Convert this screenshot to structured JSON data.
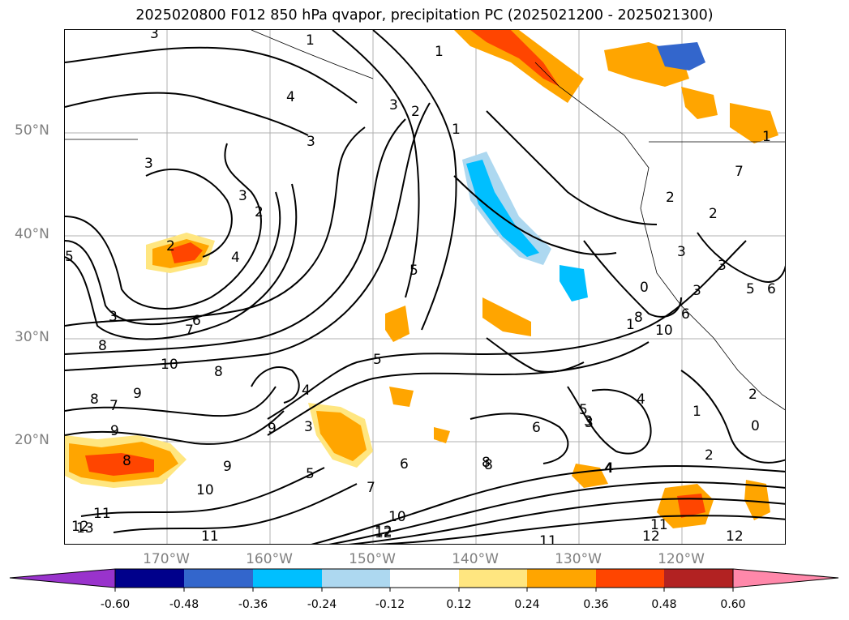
{
  "title": "2025020800 F012 850 hPa qvapor, precipitation PC (2025021200 - 2025021300)",
  "map": {
    "lat_labels": [
      "50°N",
      "40°N",
      "30°N",
      "20°N"
    ],
    "lon_labels": [
      "170°W",
      "160°W",
      "150°W",
      "140°W",
      "130°W",
      "120°W"
    ],
    "contour_labels": [
      "3",
      "1",
      "1",
      "4",
      "3",
      "2",
      "3",
      "1",
      "3",
      "3",
      "2",
      "2",
      "4",
      "5",
      "5",
      "6",
      "7",
      "8",
      "3",
      "8",
      "9",
      "8",
      "7",
      "9",
      "10",
      "8",
      "9",
      "10",
      "11",
      "12",
      "13",
      "11",
      "12",
      "9",
      "7",
      "5",
      "4",
      "3",
      "5",
      "6",
      "8",
      "10",
      "12",
      "11",
      "12",
      "6",
      "5",
      "4",
      "3",
      "4",
      "1",
      "2",
      "3",
      "6",
      "8",
      "0",
      "10",
      "2",
      "3",
      "0",
      "7",
      "2",
      "1",
      "2",
      "3",
      "12",
      "11",
      "1",
      "8",
      "4",
      "3",
      "5",
      "6"
    ]
  },
  "colorbar": {
    "ticks": [
      "-0.60",
      "-0.48",
      "-0.36",
      "-0.24",
      "-0.12",
      "0.12",
      "0.24",
      "0.36",
      "0.48",
      "0.60"
    ],
    "colors": [
      "#9933cc",
      "#00008b",
      "#3366cc",
      "#00bfff",
      "#add8f0",
      "#ffffff",
      "#ffe680",
      "#ffa500",
      "#ff4500",
      "#b22222",
      "#ff88aa"
    ]
  }
}
